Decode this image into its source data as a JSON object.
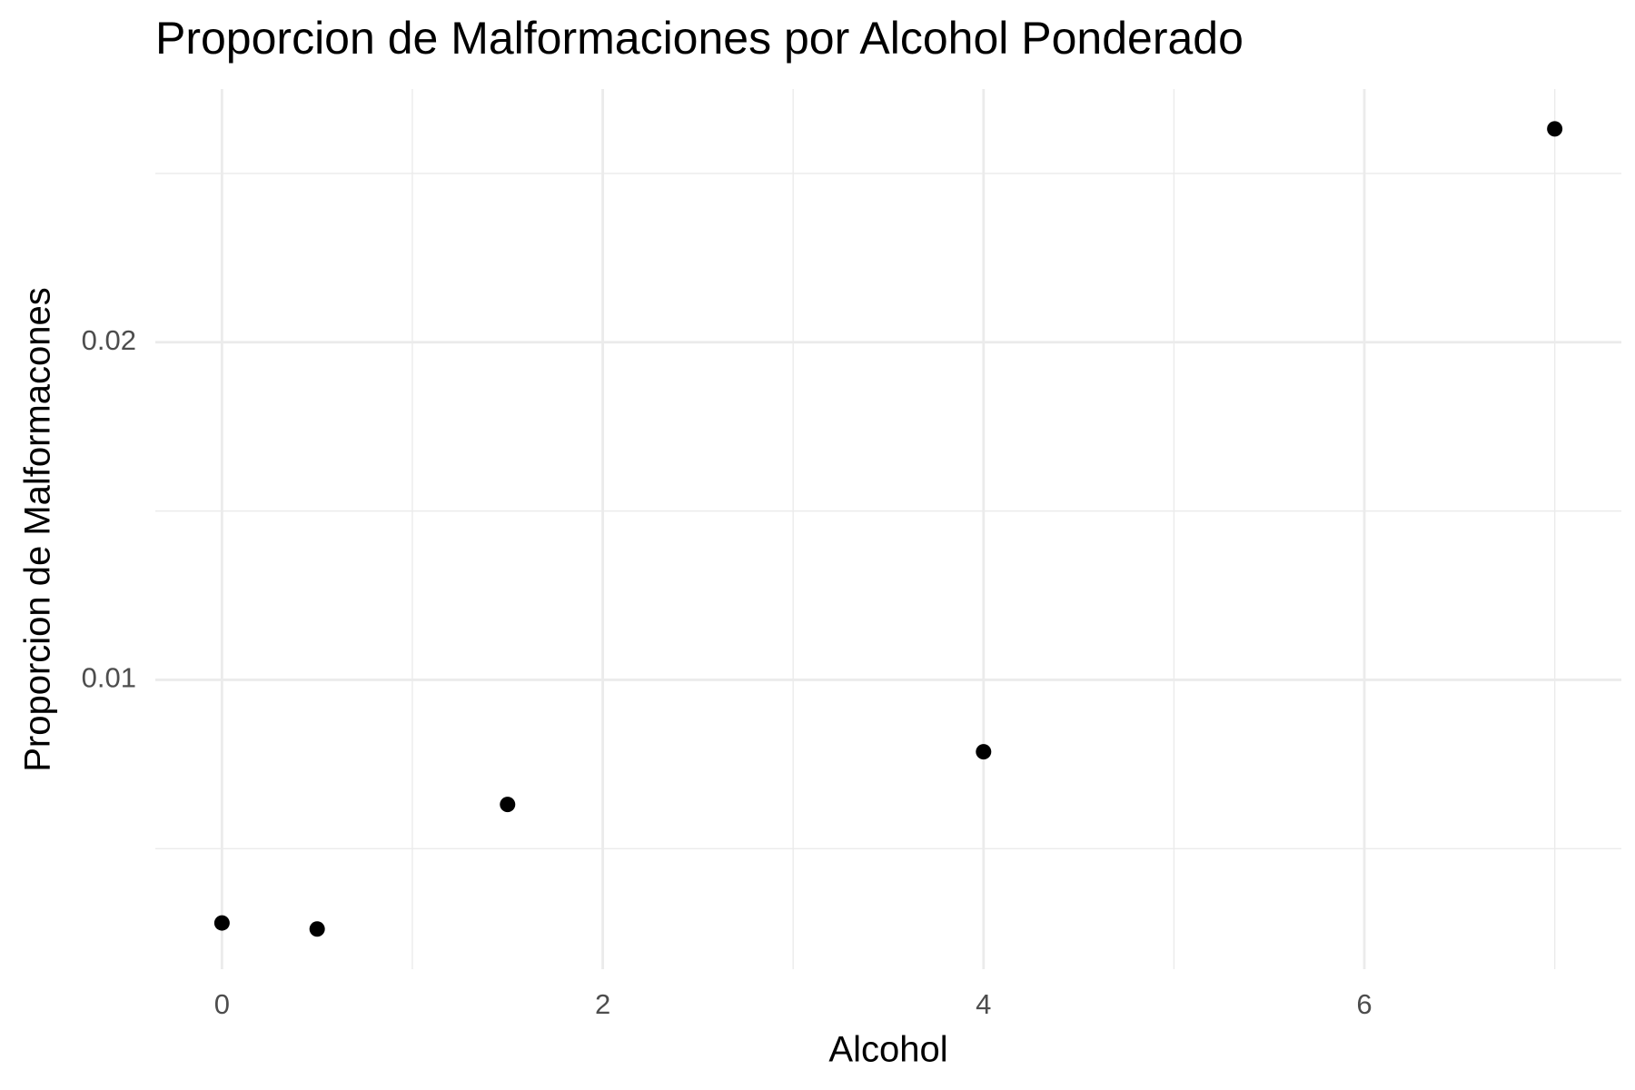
{
  "chart_data": {
    "type": "scatter",
    "title": "Proporcion de Malformaciones por Alcohol Ponderado",
    "x_label": "Alcohol",
    "y_label": "Proporcion de Malformacones",
    "x": [
      0,
      0.5,
      1.5,
      4,
      7
    ],
    "values": [
      0.0028,
      0.00262,
      0.00631,
      0.00787,
      0.02632
    ],
    "color": "#000000",
    "xlim": [
      -0.35,
      7.35
    ],
    "xticks": [
      0,
      2,
      4,
      6
    ],
    "x_minor_ticks": [
      1,
      3,
      5,
      7
    ],
    "ylim": [
      0.00143,
      0.0275
    ],
    "yticks": [
      0.01,
      0.02
    ],
    "y_minor_ticks": [
      0.005,
      0.015,
      0.025
    ],
    "grid": true
  }
}
